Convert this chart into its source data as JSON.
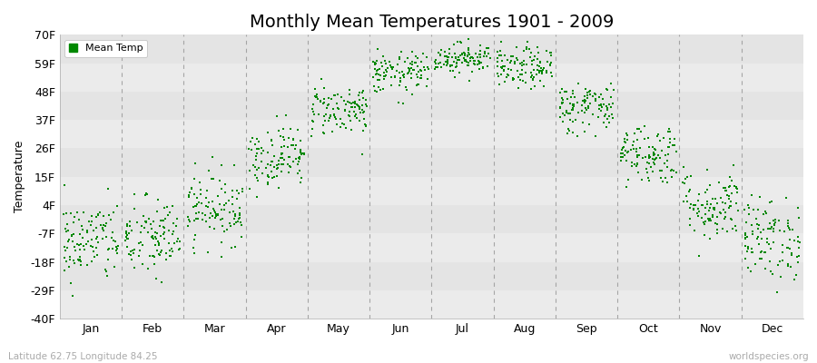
{
  "title": "Monthly Mean Temperatures 1901 - 2009",
  "ylabel": "Temperature",
  "xlabel_months": [
    "Jan",
    "Feb",
    "Mar",
    "Apr",
    "May",
    "Jun",
    "Jul",
    "Aug",
    "Sep",
    "Oct",
    "Nov",
    "Dec"
  ],
  "ytick_labels": [
    "70F",
    "59F",
    "48F",
    "37F",
    "26F",
    "15F",
    "4F",
    "-7F",
    "-18F",
    "-29F",
    "-40F"
  ],
  "ytick_values": [
    70,
    59,
    48,
    37,
    26,
    15,
    4,
    -7,
    -18,
    -29,
    -40
  ],
  "ylim": [
    -40,
    70
  ],
  "dot_color": "#008800",
  "bg_color": "#ebebeb",
  "stripe_colors": [
    "#e4e4e4",
    "#ebebeb"
  ],
  "legend_label": "Mean Temp",
  "footnote_left": "Latitude 62.75 Longitude 84.25",
  "footnote_right": "worldspecies.org",
  "monthly_mean_F": [
    -10,
    -9,
    3,
    23,
    41,
    55,
    61,
    57,
    42,
    24,
    4,
    -9
  ],
  "monthly_std_F": [
    8,
    8,
    7,
    6,
    5,
    4,
    3,
    4,
    5,
    6,
    7,
    8
  ],
  "n_years": 109,
  "seed": 42,
  "dot_size": 3,
  "dashed_line_color": "#999999",
  "title_fontsize": 14,
  "axis_label_fontsize": 9,
  "ylabel_fontsize": 9
}
